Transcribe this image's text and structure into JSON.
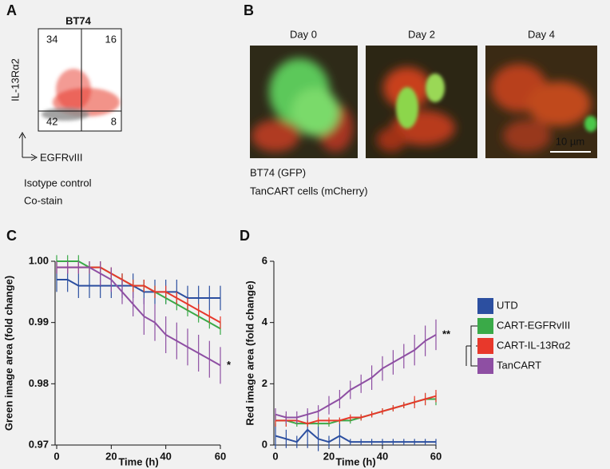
{
  "panel_a": {
    "label": "A",
    "title": "BT74",
    "y_label": "IL-13Rα2",
    "x_label": "EGFRvIII",
    "quadrants": [
      "34",
      "16",
      "42",
      "8"
    ],
    "legend": [
      {
        "name": "Isotype control",
        "color": "#8c8c8c"
      },
      {
        "name": "Co-stain",
        "color": "#e8382b"
      }
    ]
  },
  "panel_b": {
    "label": "B",
    "days": [
      "Day 0",
      "Day 2",
      "Day 4"
    ],
    "scale_bar": "10 µm",
    "legend": [
      {
        "name": "BT74 (GFP)",
        "color": "#2fa84a"
      },
      {
        "name": "TanCART cells (mCherry)",
        "color": "#e03a2c"
      }
    ]
  },
  "chart_data": [
    {
      "type": "line",
      "label": "C",
      "y_label": "Green image area (fold change)",
      "x_label": "Time (h)",
      "annotation": "*",
      "x": [
        0,
        4,
        8,
        12,
        16,
        20,
        24,
        28,
        32,
        36,
        40,
        44,
        48,
        52,
        56,
        60
      ],
      "xlim": [
        0,
        60
      ],
      "xticks": [
        0,
        20,
        40,
        60
      ],
      "ylim": [
        0.97,
        1.0
      ],
      "yticks": [
        0.97,
        0.98,
        0.99,
        {
          "value": 1.0,
          "label": "1.00"
        }
      ],
      "series": [
        {
          "color": "#2c4fa0",
          "values": [
            0.997,
            0.997,
            0.996,
            0.996,
            0.996,
            0.996,
            0.996,
            0.996,
            0.995,
            0.995,
            0.995,
            0.995,
            0.994,
            0.994,
            0.994,
            0.994
          ],
          "errors": [
            0.002,
            0.002,
            0.002,
            0.002,
            0.002,
            0.002,
            0.002,
            0.002,
            0.002,
            0.002,
            0.002,
            0.002,
            0.002,
            0.002,
            0.002,
            0.002
          ]
        },
        {
          "color": "#3aaa48",
          "values": [
            1.0,
            1.0,
            1.0,
            0.999,
            0.999,
            0.998,
            0.997,
            0.996,
            0.996,
            0.995,
            0.994,
            0.993,
            0.992,
            0.991,
            0.99,
            0.989
          ],
          "errors": [
            0.001,
            0.001,
            0.001,
            0.001,
            0.001,
            0.001,
            0.001,
            0.001,
            0.001,
            0.001,
            0.001,
            0.001,
            0.001,
            0.001,
            0.001,
            0.001
          ]
        },
        {
          "color": "#e8382b",
          "values": [
            0.999,
            0.999,
            0.999,
            0.999,
            0.999,
            0.998,
            0.997,
            0.996,
            0.996,
            0.995,
            0.995,
            0.994,
            0.993,
            0.992,
            0.991,
            0.99
          ],
          "errors": [
            0.001,
            0.001,
            0.001,
            0.001,
            0.001,
            0.001,
            0.001,
            0.001,
            0.001,
            0.001,
            0.001,
            0.001,
            0.001,
            0.001,
            0.001,
            0.001
          ]
        },
        {
          "color": "#8e4fa3",
          "values": [
            0.999,
            0.999,
            0.999,
            0.999,
            0.998,
            0.997,
            0.995,
            0.993,
            0.991,
            0.99,
            0.988,
            0.987,
            0.986,
            0.985,
            0.984,
            0.983
          ],
          "errors": [
            0.001,
            0.001,
            0.001,
            0.001,
            0.002,
            0.002,
            0.002,
            0.002,
            0.003,
            0.003,
            0.003,
            0.003,
            0.003,
            0.003,
            0.003,
            0.003
          ]
        }
      ]
    },
    {
      "type": "line",
      "label": "D",
      "y_label": "Red image area (fold change)",
      "x_label": "Time (h)",
      "annotation": "**",
      "x": [
        0,
        4,
        8,
        12,
        16,
        20,
        24,
        28,
        32,
        36,
        40,
        44,
        48,
        52,
        56,
        60
      ],
      "xlim": [
        0,
        60
      ],
      "xticks": [
        0,
        20,
        40,
        60
      ],
      "ylim": [
        0,
        6
      ],
      "yticks": [
        0,
        2,
        4,
        6
      ],
      "series": [
        {
          "name": "UTD",
          "color": "#2c4fa0",
          "values": [
            0.3,
            0.2,
            0.1,
            0.5,
            0.2,
            0.1,
            0.3,
            0.1,
            0.1,
            0.1,
            0.1,
            0.1,
            0.1,
            0.1,
            0.1,
            0.1
          ],
          "errors": [
            0.4,
            0.3,
            0.2,
            0.6,
            0.4,
            0.2,
            0.4,
            0.1,
            0.1,
            0.1,
            0.1,
            0.1,
            0.1,
            0.1,
            0.1,
            0.1
          ]
        },
        {
          "name": "CART-EGFRvIII",
          "color": "#3aaa48",
          "values": [
            0.8,
            0.8,
            0.7,
            0.7,
            0.7,
            0.7,
            0.8,
            0.8,
            0.9,
            1.0,
            1.1,
            1.2,
            1.3,
            1.4,
            1.5,
            1.5
          ],
          "errors": [
            0.2,
            0.2,
            0.1,
            0.1,
            0.1,
            0.1,
            0.1,
            0.1,
            0.1,
            0.1,
            0.1,
            0.1,
            0.1,
            0.1,
            0.2,
            0.2
          ]
        },
        {
          "name": "CART-IL-13Rα2",
          "color": "#e8382b",
          "values": [
            0.8,
            0.8,
            0.8,
            0.7,
            0.8,
            0.8,
            0.8,
            0.9,
            0.9,
            1.0,
            1.1,
            1.2,
            1.3,
            1.4,
            1.5,
            1.6
          ],
          "errors": [
            0.2,
            0.2,
            0.1,
            0.1,
            0.1,
            0.1,
            0.1,
            0.1,
            0.1,
            0.1,
            0.1,
            0.1,
            0.1,
            0.2,
            0.2,
            0.2
          ]
        },
        {
          "name": "TanCART",
          "color": "#8e4fa3",
          "values": [
            1.0,
            0.9,
            0.9,
            1.0,
            1.1,
            1.3,
            1.5,
            1.8,
            2.0,
            2.2,
            2.5,
            2.7,
            2.9,
            3.1,
            3.4,
            3.6
          ],
          "errors": [
            0.2,
            0.2,
            0.2,
            0.2,
            0.2,
            0.3,
            0.3,
            0.3,
            0.3,
            0.4,
            0.4,
            0.4,
            0.4,
            0.5,
            0.5,
            0.5
          ]
        }
      ]
    }
  ]
}
